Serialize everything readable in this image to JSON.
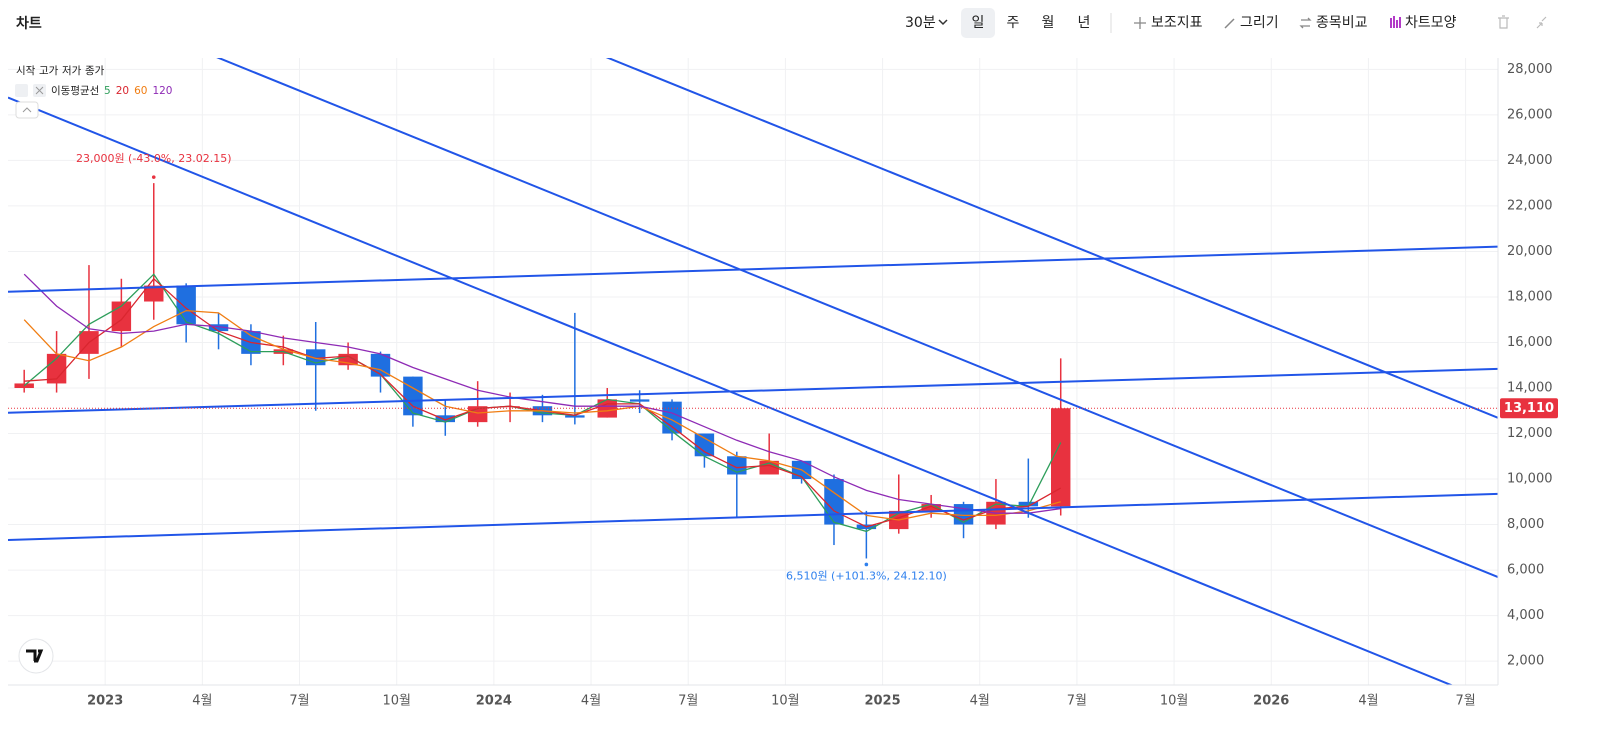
{
  "toolbar": {
    "title": "차트",
    "interval": "30분",
    "periods": [
      "일",
      "주",
      "월",
      "년"
    ],
    "tools": [
      "보조지표",
      "그리기",
      "종목비교",
      "차트모양"
    ]
  },
  "chart_data": {
    "type": "candlestick",
    "ohlc_labels": [
      "시작",
      "고가",
      "저가",
      "종가"
    ],
    "x": [
      "2022-10",
      "2022-11",
      "2022-12",
      "2023-01",
      "2023-02",
      "2023-03",
      "2023-04",
      "2023-05",
      "2023-06",
      "2023-07",
      "2023-08",
      "2023-09",
      "2023-10",
      "2023-11",
      "2023-12",
      "2024-01",
      "2024-02",
      "2024-03",
      "2024-04",
      "2024-05",
      "2024-06",
      "2024-07",
      "2024-08",
      "2024-09",
      "2024-10",
      "2024-11",
      "2024-12",
      "2025-01",
      "2025-02",
      "2025-03",
      "2025-04",
      "2025-05",
      "2025-06"
    ],
    "open": [
      14000,
      14200,
      15500,
      16500,
      17800,
      18500,
      16800,
      16500,
      15500,
      15700,
      15000,
      15500,
      14500,
      12800,
      12500,
      13200,
      13200,
      12800,
      12700,
      13500,
      13400,
      12000,
      11000,
      10200,
      10800,
      10000,
      8000,
      7800,
      8600,
      8900,
      8000,
      9000,
      8800
    ],
    "high": [
      14800,
      16500,
      19400,
      18800,
      23000,
      18600,
      17300,
      16800,
      16300,
      16900,
      16000,
      15600,
      14500,
      13500,
      14300,
      13800,
      13700,
      17300,
      14000,
      13900,
      13500,
      12000,
      11200,
      12000,
      10800,
      10200,
      8600,
      10200,
      9300,
      9000,
      10000,
      10900,
      15300
    ],
    "low": [
      13800,
      13800,
      14400,
      15800,
      17000,
      16000,
      15700,
      15000,
      15000,
      13000,
      14800,
      13800,
      12300,
      11900,
      12300,
      12500,
      12500,
      12400,
      12700,
      12900,
      11700,
      10500,
      8300,
      10200,
      9800,
      7100,
      6510,
      7600,
      8300,
      7400,
      7800,
      8300,
      8400
    ],
    "close": [
      14200,
      15500,
      16500,
      17800,
      18500,
      16800,
      16500,
      15500,
      15700,
      15000,
      15500,
      14500,
      12800,
      12500,
      13200,
      13200,
      12800,
      12700,
      13500,
      13400,
      12000,
      11000,
      10200,
      10800,
      10000,
      8000,
      7800,
      8600,
      8900,
      8000,
      9000,
      8800,
      13110
    ],
    "up_color": "#e8323f",
    "down_color": "#1f6fe0",
    "indicator": "이동평균선",
    "series": [
      {
        "name": "5",
        "color": "#2e9e5b",
        "values": [
          14100,
          15300,
          16800,
          17600,
          19000,
          16900,
          16400,
          15600,
          15600,
          15100,
          15400,
          14600,
          12900,
          12500,
          13100,
          13200,
          12900,
          12800,
          13500,
          13300,
          12100,
          11000,
          10300,
          10700,
          10100,
          8100,
          7700,
          8500,
          8900,
          8100,
          8900,
          8800,
          11600
        ]
      },
      {
        "name": "20",
        "color": "#d9262f",
        "values": [
          14300,
          14400,
          16000,
          17000,
          18800,
          17500,
          16500,
          16000,
          15800,
          15300,
          15400,
          14600,
          13200,
          12600,
          13100,
          13200,
          13000,
          12800,
          13300,
          13300,
          12300,
          11200,
          10500,
          10600,
          10100,
          8600,
          7900,
          8300,
          8800,
          8200,
          8700,
          8800,
          9600
        ]
      },
      {
        "name": "60",
        "color": "#f07d12",
        "values": [
          17000,
          15500,
          15200,
          15800,
          16700,
          17400,
          17300,
          16300,
          15700,
          15300,
          15100,
          14800,
          14000,
          13200,
          12900,
          13000,
          13000,
          12900,
          13000,
          13200,
          12600,
          11800,
          11000,
          10800,
          10400,
          9400,
          8400,
          8200,
          8500,
          8400,
          8400,
          8600,
          9000
        ]
      },
      {
        "name": "120",
        "color": "#8e2bb5",
        "values": [
          19000,
          17600,
          16600,
          16400,
          16500,
          16800,
          16700,
          16500,
          16200,
          16000,
          15800,
          15500,
          14900,
          14400,
          13900,
          13600,
          13400,
          13200,
          13200,
          13200,
          12900,
          12300,
          11700,
          11200,
          10800,
          10100,
          9500,
          9100,
          8900,
          8700,
          8500,
          8500,
          8700
        ]
      }
    ],
    "ylim": [
      950,
      28500
    ],
    "yticks": [
      {
        "value": 2000,
        "label": "2,000"
      },
      {
        "value": 4000,
        "label": "4,000"
      },
      {
        "value": 6000,
        "label": "6,000"
      },
      {
        "value": 8000,
        "label": "8,000"
      },
      {
        "value": 10000,
        "label": "10,000"
      },
      {
        "value": 12000,
        "label": "12,000"
      },
      {
        "value": 14000,
        "label": "14,000"
      },
      {
        "value": 16000,
        "label": "16,000"
      },
      {
        "value": 18000,
        "label": "18,000"
      },
      {
        "value": 20000,
        "label": "20,000"
      },
      {
        "value": 22000,
        "label": "22,000"
      },
      {
        "value": 24000,
        "label": "24,000"
      },
      {
        "value": 26000,
        "label": "26,000"
      },
      {
        "value": 28000,
        "label": "28,000"
      }
    ],
    "xlim": [
      "2022-10",
      "2026-08"
    ],
    "xticks": [
      {
        "value": "2023-01",
        "label": "2023"
      },
      {
        "value": "2023-04",
        "label": "4월"
      },
      {
        "value": "2023-07",
        "label": "7월"
      },
      {
        "value": "2023-10",
        "label": "10월"
      },
      {
        "value": "2024-01",
        "label": "2024"
      },
      {
        "value": "2024-04",
        "label": "4월"
      },
      {
        "value": "2024-07",
        "label": "7월"
      },
      {
        "value": "2024-10",
        "label": "10월"
      },
      {
        "value": "2025-01",
        "label": "2025"
      },
      {
        "value": "2025-04",
        "label": "4월"
      },
      {
        "value": "2025-07",
        "label": "7월"
      },
      {
        "value": "2025-10",
        "label": "10월"
      },
      {
        "value": "2026-01",
        "label": "2026"
      },
      {
        "value": "2026-04",
        "label": "4월"
      },
      {
        "value": "2026-07",
        "label": "7월"
      }
    ],
    "last_price": {
      "value": 13110,
      "label": "13,110",
      "color": "#e8323f"
    },
    "annotations": [
      {
        "x": "2023-02",
        "value": 23000,
        "text": "23,000원 (-43.0%, 23.02.15)",
        "color": "#e8323f"
      },
      {
        "x": "2024-12",
        "value": 6510,
        "text": "6,510원 (+101.3%, 24.12.10)",
        "color": "#2f80ed"
      }
    ],
    "trendlines": [
      {
        "x": [
          "2022-10",
          "2026-08"
        ],
        "y": [
          18230,
          20210
        ]
      },
      {
        "x": [
          "2022-10",
          "2026-08"
        ],
        "y": [
          12910,
          14840
        ]
      },
      {
        "x": [
          "2022-10",
          "2026-08"
        ],
        "y": [
          7320,
          9350
        ]
      },
      {
        "x": [
          "2022-10",
          "2026-08"
        ],
        "y": [
          26760,
          109
        ]
      },
      {
        "x": [
          "2022-10",
          "2026-08"
        ],
        "y": [
          32260,
          5690
        ]
      },
      {
        "x": [
          "2022-10",
          "2026-08"
        ],
        "y": [
          39170,
          12690
        ]
      }
    ],
    "trendline_color": "#2155e8",
    "grid": true
  }
}
